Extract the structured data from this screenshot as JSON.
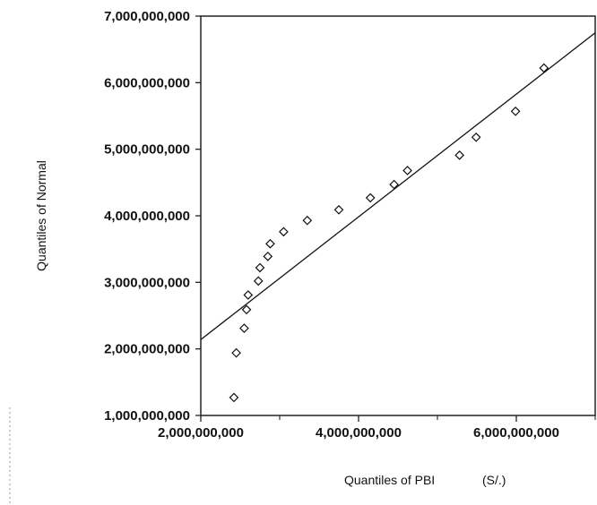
{
  "chart_data": {
    "type": "scatter",
    "title": "",
    "xlabel": "Quantiles of PBI",
    "xunit": "(S/.)",
    "ylabel": "Quantiles of Normal",
    "xlim": [
      0,
      7000000000
    ],
    "xrange_visible": [
      2000000000,
      7000000000
    ],
    "ylim": [
      1000000000,
      7000000000
    ],
    "x_ticks": [
      2000000000,
      4000000000,
      6000000000
    ],
    "x_tick_labels": [
      "2,000,000,000",
      "4,000,000,000",
      "6,000,000,000"
    ],
    "y_ticks": [
      1000000000,
      2000000000,
      3000000000,
      4000000000,
      5000000000,
      6000000000,
      7000000000
    ],
    "y_tick_labels": [
      "1,000,000,000",
      "2,000,000,000",
      "3,000,000,000",
      "4,000,000,000",
      "5,000,000,000",
      "6,000,000,000",
      "7,000,000,000"
    ],
    "grid": false,
    "reference_line": {
      "x": [
        2000000000,
        7000000000
      ],
      "y": [
        2140000000,
        6750000000
      ]
    },
    "points": {
      "x": [
        2420000000,
        2450000000,
        2550000000,
        2580000000,
        2600000000,
        2730000000,
        2750000000,
        2850000000,
        2880000000,
        3050000000,
        3350000000,
        3750000000,
        4150000000,
        4450000000,
        4620000000,
        5280000000,
        5490000000,
        5990000000,
        6350000000
      ],
      "y": [
        1270000000,
        1940000000,
        2310000000,
        2590000000,
        2810000000,
        3020000000,
        3220000000,
        3390000000,
        3580000000,
        3760000000,
        3930000000,
        4090000000,
        4270000000,
        4470000000,
        4680000000,
        4910000000,
        5180000000,
        5570000000,
        6220000000
      ]
    }
  }
}
